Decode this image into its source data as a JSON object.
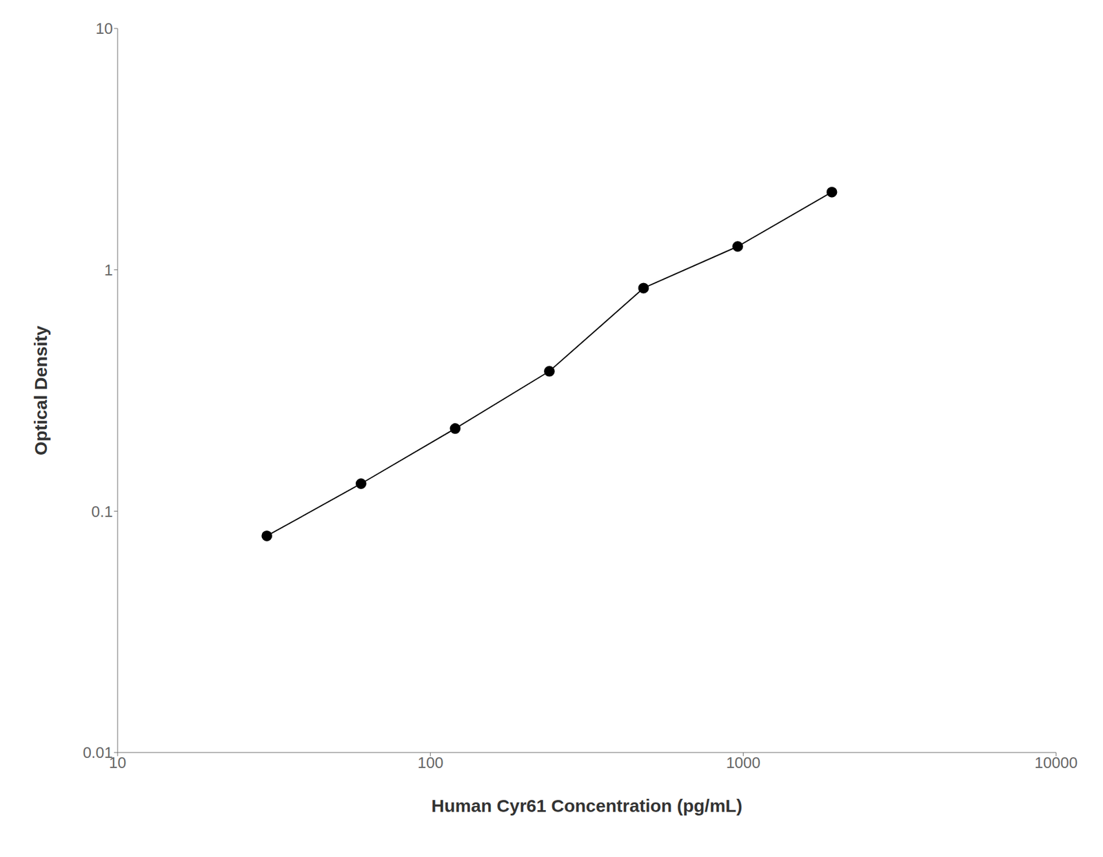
{
  "chart_data": {
    "type": "line",
    "x": [
      30,
      60,
      120,
      240,
      480,
      960,
      1920
    ],
    "values": [
      0.079,
      0.13,
      0.22,
      0.38,
      0.84,
      1.25,
      2.1
    ],
    "xlabel": "Human Cyr61 Concentration (pg/mL)",
    "ylabel": "Optical Density",
    "xlim": [
      10,
      10000
    ],
    "ylim": [
      0.01,
      10
    ],
    "xticks": [
      10,
      100,
      1000,
      10000
    ],
    "yticks": [
      0.01,
      0.1,
      1,
      10
    ],
    "log": true,
    "grid": false,
    "color": "#000000",
    "marker": "circle"
  }
}
